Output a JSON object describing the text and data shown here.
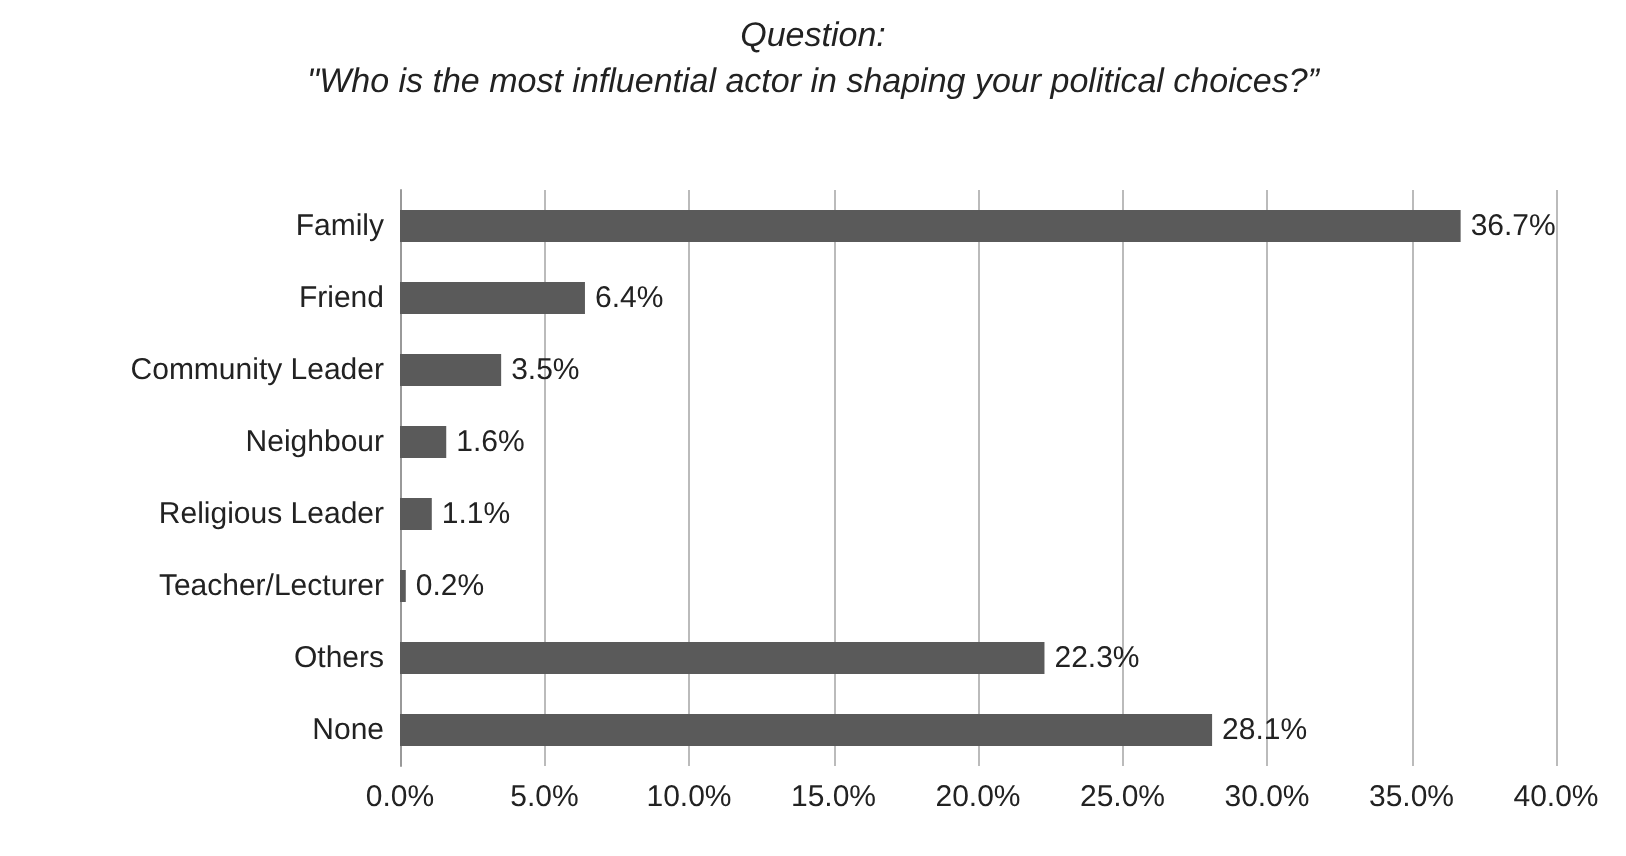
{
  "chart_data": {
    "type": "bar",
    "orientation": "horizontal",
    "title": "Question:",
    "subtitle": "\"Who is the most influential actor in shaping your political choices?”",
    "categories": [
      "Family",
      "Friend",
      "Community Leader",
      "Neighbour",
      "Religious Leader",
      "Teacher/Lecturer",
      "Others",
      "None"
    ],
    "values": [
      36.7,
      6.4,
      3.5,
      1.6,
      1.1,
      0.2,
      22.3,
      28.1
    ],
    "value_labels": [
      "36.7%",
      "6.4%",
      "3.5%",
      "1.6%",
      "1.1%",
      "0.2%",
      "22.3%",
      "28.1%"
    ],
    "color": "#5a5a5a",
    "xlim": [
      0,
      40
    ],
    "xticks": [
      {
        "value": 0,
        "label": "0.0%"
      },
      {
        "value": 5,
        "label": "5.0%"
      },
      {
        "value": 10,
        "label": "10.0%"
      },
      {
        "value": 15,
        "label": "15.0%"
      },
      {
        "value": 20,
        "label": "20.0%"
      },
      {
        "value": 25,
        "label": "25.0%"
      },
      {
        "value": 30,
        "label": "30.0%"
      },
      {
        "value": 35,
        "label": "35.0%"
      },
      {
        "value": 40,
        "label": "40.0%"
      }
    ],
    "grid": "x"
  }
}
